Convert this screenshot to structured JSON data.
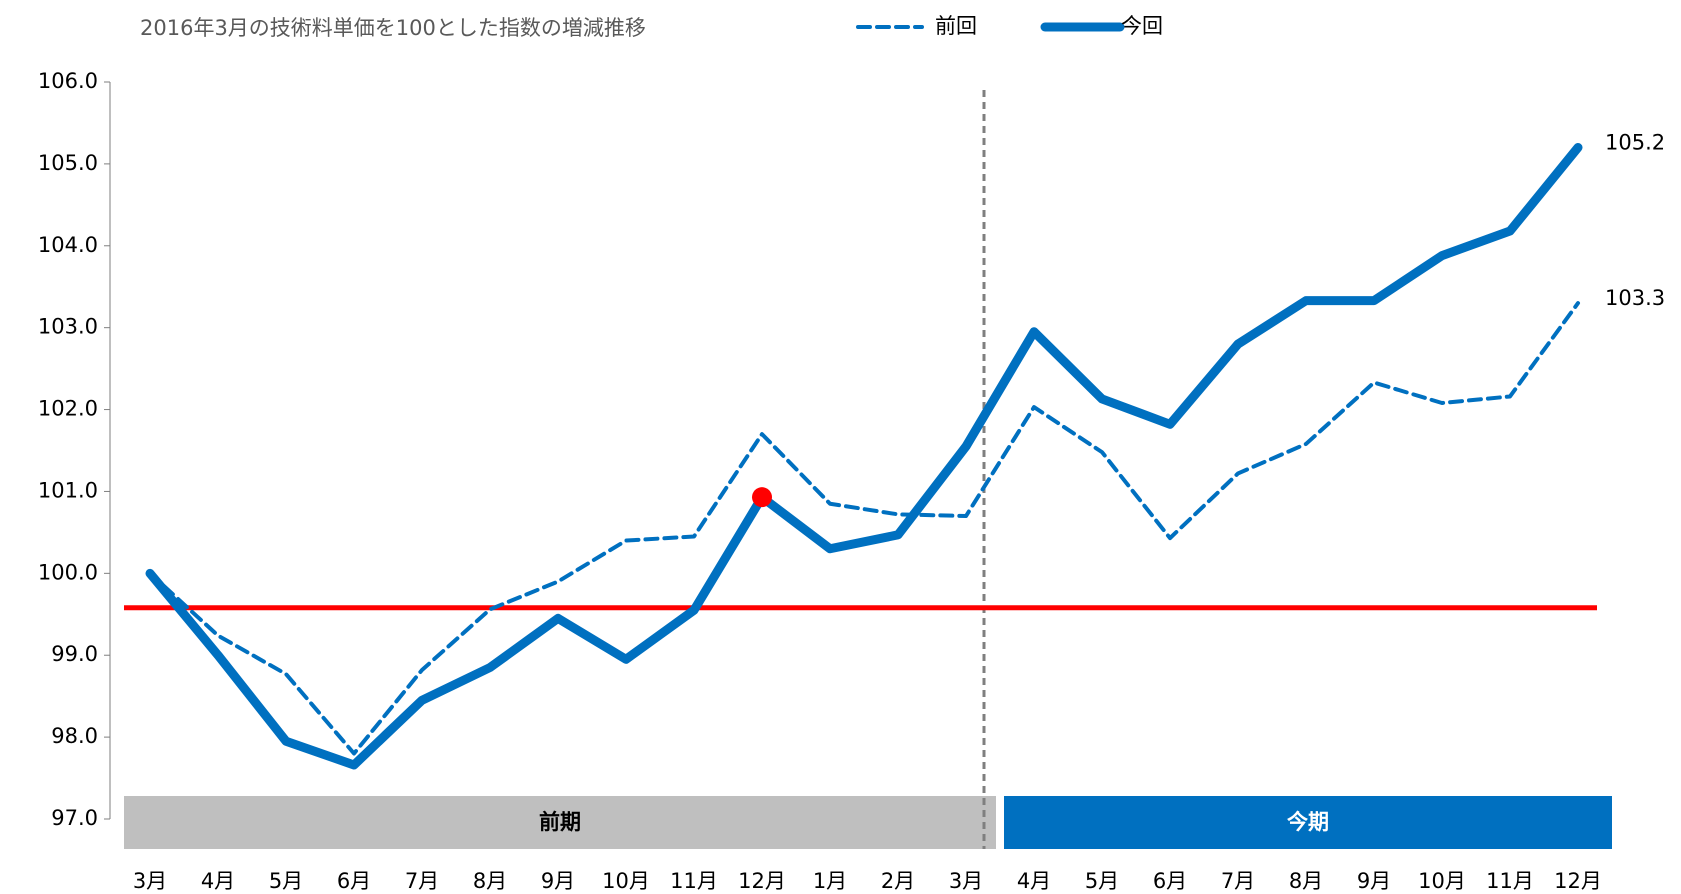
{
  "chart_data": {
    "type": "line",
    "title": "2016年3月の技術料単価を100とした指数の増減推移",
    "categories": [
      "3月",
      "4月",
      "5月",
      "6月",
      "7月",
      "8月",
      "9月",
      "10月",
      "11月",
      "12月",
      "1月",
      "2月",
      "3月",
      "4月",
      "5月",
      "6月",
      "7月",
      "8月",
      "9月",
      "10月",
      "11月",
      "12月"
    ],
    "series": [
      {
        "name": "前回",
        "color": "#0070c0",
        "dash": true,
        "values": [
          100.0,
          99.24,
          98.77,
          97.8,
          98.82,
          99.56,
          99.9,
          100.4,
          100.45,
          101.7,
          100.85,
          100.72,
          100.7,
          102.03,
          101.48,
          100.43,
          101.22,
          101.58,
          102.33,
          102.08,
          102.16,
          103.3
        ],
        "value_labels": [
          null,
          null,
          null,
          null,
          null,
          null,
          null,
          null,
          null,
          null,
          null,
          null,
          null,
          null,
          null,
          null,
          null,
          null,
          null,
          null,
          null,
          "103.3"
        ]
      },
      {
        "name": "今回",
        "color": "#0070c0",
        "dash": false,
        "values": [
          100.0,
          99.0,
          97.95,
          97.66,
          98.45,
          98.85,
          99.45,
          98.95,
          99.55,
          100.93,
          100.3,
          100.47,
          101.55,
          102.95,
          102.13,
          101.82,
          102.8,
          103.33,
          103.33,
          103.88,
          104.18,
          105.2
        ],
        "value_labels": [
          null,
          null,
          null,
          null,
          null,
          null,
          null,
          null,
          null,
          null,
          null,
          null,
          null,
          null,
          null,
          null,
          null,
          null,
          null,
          null,
          null,
          "105.2"
        ]
      }
    ],
    "ylim": [
      97,
      106
    ],
    "yticks": [
      {
        "value": 97,
        "label": "97.0"
      },
      {
        "value": 98,
        "label": "98.0"
      },
      {
        "value": 99,
        "label": "99.0"
      },
      {
        "value": 100,
        "label": "100.0"
      },
      {
        "value": 101,
        "label": "101.0"
      },
      {
        "value": 102,
        "label": "102.0"
      },
      {
        "value": 103,
        "label": "103.0"
      },
      {
        "value": 104,
        "label": "104.0"
      },
      {
        "value": 105,
        "label": "105.0"
      },
      {
        "value": 106,
        "label": "106.0"
      }
    ],
    "reference_line": {
      "value": 99.58,
      "color": "#ff0000"
    },
    "highlight": {
      "series": 1,
      "index": 9,
      "color": "#ff0000"
    },
    "periods": [
      {
        "label": "前期",
        "color": "#bfbfbf",
        "from": 0,
        "to": 12
      },
      {
        "label": "今期",
        "color": "#0070c0",
        "from": 13,
        "to": 21
      }
    ]
  }
}
